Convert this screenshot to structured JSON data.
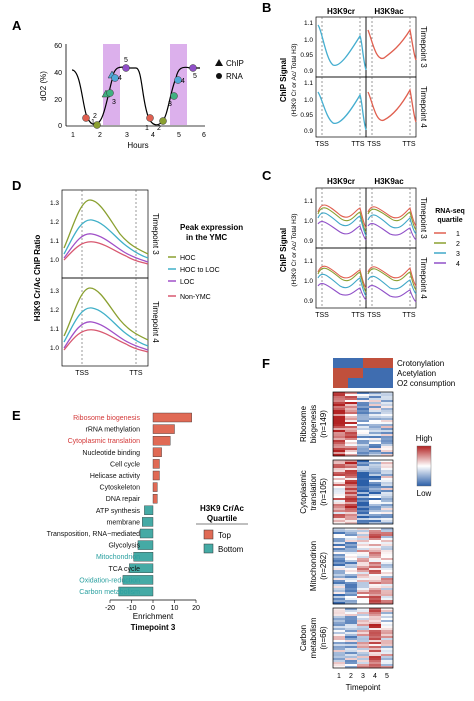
{
  "panel_labels": {
    "A": "A",
    "B": "B",
    "C": "C",
    "D": "D",
    "E": "E",
    "F": "F"
  },
  "panelA": {
    "ylabel": "dO2 (%)",
    "xlabel": "Hours",
    "yticks": [
      "0",
      "20",
      "40",
      "60"
    ],
    "xticks": [
      "1",
      "2",
      "3",
      "4",
      "5",
      "6"
    ],
    "legend_chip": "ChIP",
    "legend_rna": "RNA",
    "points": [
      "1",
      "2",
      "3",
      "4",
      "5",
      "1",
      "2",
      "3",
      "4",
      "5"
    ],
    "colors": {
      "p1": "#e06050",
      "p2": "#8aa030",
      "p3": "#40b080",
      "p4": "#50a8d8",
      "p5": "#9050c8",
      "band": "#d8a0e8"
    }
  },
  "panelB": {
    "col1": "H3K9cr",
    "col2": "H3K9ac",
    "ylabel": "ChIP Signal",
    "ylabel2": "(H3K9 Cr or Ac/ Total H3)",
    "row1": "Timepoint 3",
    "row2": "Timepoint 4",
    "yticks": [
      "1.1",
      "1.0",
      "0.95",
      "0.9"
    ],
    "tss": "TSS",
    "tts": "TTS"
  },
  "panelC": {
    "col1": "H3K9cr",
    "col2": "H3K9ac",
    "ylabel": "ChIP Signal",
    "ylabel2": "(H3K9 Cr or Ac/ Total H3)",
    "row1": "Timepoint 3",
    "row2": "Timepoint 4",
    "yticks": [
      "1.1",
      "1.0",
      "0.9"
    ],
    "tss": "TSS",
    "tts": "TTS",
    "legend_title1": "RNA-seq",
    "legend_title2": "quartile",
    "legend": [
      "1",
      "2",
      "3",
      "4"
    ]
  },
  "panelD": {
    "ylabel": "H3K9 Cr/Ac ChIP Ratio",
    "yticks": [
      "1.3",
      "1.2",
      "1.1",
      "1.0"
    ],
    "row1": "Timepoint 3",
    "row2": "Timepoint 4",
    "tss": "TSS",
    "tts": "TTS",
    "legend_title1": "Peak expression",
    "legend_title2": "in the YMC",
    "legend": [
      "HOC",
      "HOC to LOC",
      "LOC",
      "Non-YMC"
    ]
  },
  "panelE": {
    "xlabel": "Enrichment",
    "subtitle": "Timepoint 3",
    "xticks": [
      "-20",
      "-10",
      "0",
      "10",
      "20"
    ],
    "legend_title1": "H3K9 Cr/Ac",
    "legend_title2": "Quartile",
    "legend_top": "Top",
    "legend_bottom": "Bottom",
    "terms": [
      "Ribosome biogenesis",
      "rRNA methylation",
      "Cytoplasmic translation",
      "Nucleotide binding",
      "Cell cycle",
      "Helicase activity",
      "Cytoskeleton",
      "DNA repair",
      "ATP synthesis",
      "membrane",
      "Transposition, RNA−mediated",
      "Glycolysis",
      "Mitochondrion",
      "TCA cycle",
      "Oxidation-reduction",
      "Carbon metabolism"
    ]
  },
  "panelF": {
    "header": [
      "Crotonylation",
      "Acetylation",
      "O2 consumption"
    ],
    "legend_high": "High",
    "legend_low": "Low",
    "groups": [
      {
        "name": "Ribosome",
        "name2": "biogenesis",
        "n": "(n=149)"
      },
      {
        "name": "Cytoplasmic",
        "name2": "translation",
        "n": "(n=105)"
      },
      {
        "name": "Mitochondrion",
        "name2": "",
        "n": "(n=262)"
      },
      {
        "name": "Carbon",
        "name2": "metabolism",
        "n": "(n=66)"
      }
    ],
    "xticks": [
      "1",
      "2",
      "3",
      "4",
      "5"
    ],
    "xlabel": "Timepoint"
  },
  "chart_data": [
    {
      "type": "line",
      "panel": "A",
      "xlabel": "Hours",
      "ylabel": "dO2 (%)",
      "xlim": [
        1,
        6
      ],
      "ylim": [
        0,
        60
      ],
      "series": [
        {
          "values_x": [
            1.2,
            1.5,
            1.8,
            2.2,
            2.6,
            3.0,
            3.4,
            3.8,
            4.2,
            4.6,
            5.0,
            5.4,
            5.7
          ],
          "values_y": [
            42,
            25,
            5,
            10,
            40,
            44,
            44,
            25,
            5,
            12,
            40,
            45,
            45
          ]
        }
      ]
    },
    {
      "type": "bar",
      "panel": "E",
      "title": "Timepoint 3",
      "xlabel": "Enrichment",
      "xlim": [
        -20,
        20
      ],
      "categories": [
        "Ribosome biogenesis",
        "rRNA methylation",
        "Cytoplasmic translation",
        "Nucleotide binding",
        "Cell cycle",
        "Helicase activity",
        "Cytoskeleton",
        "DNA repair",
        "ATP synthesis",
        "membrane",
        "Transposition, RNA−mediated",
        "Glycolysis",
        "Mitochondrion",
        "TCA cycle",
        "Oxidation-reduction",
        "Carbon metabolism"
      ],
      "values": [
        18,
        10,
        8,
        4,
        3,
        3,
        2,
        2,
        -4,
        -5,
        -6,
        -7,
        -9,
        -11,
        -14,
        -16
      ],
      "series": [
        {
          "name": "Top",
          "color": "#e06a55"
        },
        {
          "name": "Bottom",
          "color": "#45aaa5"
        }
      ]
    }
  ]
}
